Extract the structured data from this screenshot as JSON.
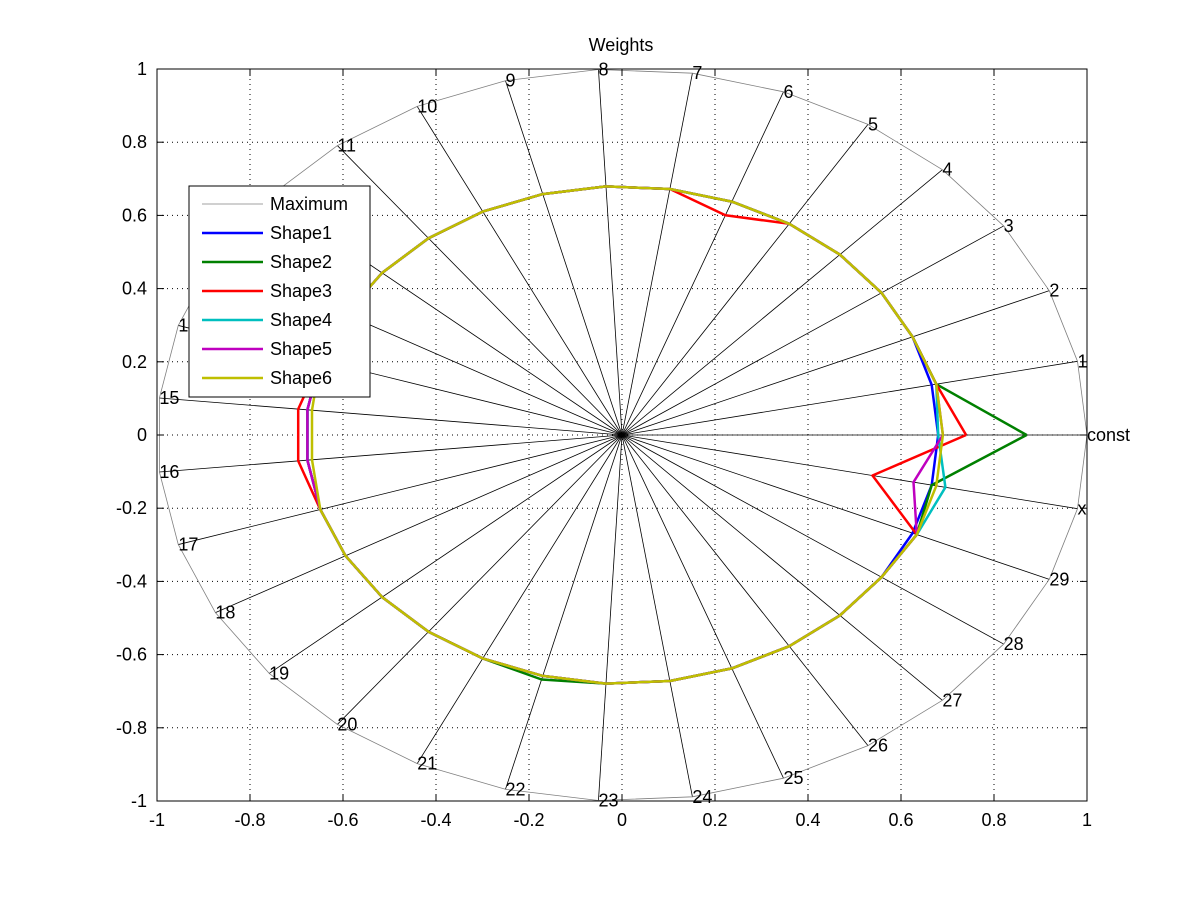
{
  "chart_data": {
    "type": "line",
    "subtype": "radar",
    "title": "Weights",
    "xlim": [
      -1,
      1
    ],
    "ylim": [
      -1,
      1
    ],
    "xticks": [
      "-1",
      "-0.8",
      "-0.6",
      "-0.4",
      "-0.2",
      "0",
      "0.2",
      "0.4",
      "0.6",
      "0.8",
      "1"
    ],
    "yticks": [
      "-1",
      "-0.8",
      "-0.6",
      "-0.4",
      "-0.2",
      "0",
      "0.2",
      "0.4",
      "0.6",
      "0.8",
      "1"
    ],
    "grid": true,
    "legend_position": "upper-left",
    "spoke_labels": [
      "const",
      "1",
      "2",
      "3",
      "4",
      "5",
      "6",
      "7",
      "8",
      "9",
      "10",
      "11",
      "12",
      "13",
      "14",
      "15",
      "16",
      "17",
      "18",
      "19",
      "20",
      "21",
      "22",
      "23",
      "24",
      "25",
      "26",
      "27",
      "28",
      "29",
      "x"
    ],
    "spoke_angle_step_deg": 11.6129,
    "series": [
      {
        "name": "Maximum",
        "color": "#808080",
        "values": [
          1,
          1,
          1,
          1,
          1,
          1,
          1,
          1,
          1,
          1,
          1,
          1,
          1,
          1,
          1,
          1,
          1,
          1,
          1,
          1,
          1,
          1,
          1,
          1,
          1,
          1,
          1,
          1,
          1,
          1,
          1
        ]
      },
      {
        "name": "Shape1",
        "color": "#0000ff",
        "values": [
          0.68,
          0.68,
          0.68,
          0.68,
          0.68,
          0.68,
          0.68,
          0.68,
          0.68,
          0.68,
          0.68,
          0.68,
          0.68,
          0.68,
          0.68,
          0.68,
          0.68,
          0.68,
          0.68,
          0.68,
          0.68,
          0.68,
          0.68,
          0.68,
          0.68,
          0.68,
          0.68,
          0.68,
          0.68,
          0.68,
          0.68
        ]
      },
      {
        "name": "Shape2",
        "color": "#008000",
        "values": [
          0.87,
          0.69,
          0.68,
          0.68,
          0.68,
          0.68,
          0.68,
          0.68,
          0.68,
          0.68,
          0.68,
          0.68,
          0.68,
          0.68,
          0.68,
          0.68,
          0.68,
          0.68,
          0.68,
          0.68,
          0.68,
          0.68,
          0.69,
          0.68,
          0.68,
          0.68,
          0.68,
          0.68,
          0.68,
          0.69,
          0.68
        ]
      },
      {
        "name": "Shape3",
        "color": "#ff0000",
        "values": [
          0.74,
          0.69,
          0.68,
          0.68,
          0.68,
          0.68,
          0.64,
          0.68,
          0.68,
          0.68,
          0.68,
          0.68,
          0.68,
          0.68,
          0.68,
          0.7,
          0.7,
          0.68,
          0.68,
          0.68,
          0.68,
          0.68,
          0.68,
          0.68,
          0.68,
          0.68,
          0.68,
          0.68,
          0.68,
          0.69,
          0.55
        ]
      },
      {
        "name": "Shape4",
        "color": "#00bfbf",
        "values": [
          0.68,
          0.69,
          0.68,
          0.68,
          0.68,
          0.68,
          0.68,
          0.68,
          0.68,
          0.68,
          0.68,
          0.68,
          0.68,
          0.68,
          0.68,
          0.68,
          0.68,
          0.68,
          0.68,
          0.68,
          0.68,
          0.68,
          0.68,
          0.68,
          0.68,
          0.68,
          0.68,
          0.68,
          0.68,
          0.69,
          0.71
        ]
      },
      {
        "name": "Shape5",
        "color": "#bf00bf",
        "values": [
          0.69,
          0.69,
          0.68,
          0.68,
          0.68,
          0.68,
          0.68,
          0.68,
          0.68,
          0.68,
          0.68,
          0.68,
          0.68,
          0.68,
          0.68,
          0.68,
          0.68,
          0.68,
          0.68,
          0.68,
          0.68,
          0.68,
          0.68,
          0.68,
          0.68,
          0.68,
          0.68,
          0.68,
          0.68,
          0.69,
          0.64
        ]
      },
      {
        "name": "Shape6",
        "color": "#bfbf00",
        "values": [
          0.69,
          0.69,
          0.68,
          0.68,
          0.68,
          0.68,
          0.68,
          0.68,
          0.68,
          0.68,
          0.68,
          0.68,
          0.68,
          0.68,
          0.68,
          0.67,
          0.67,
          0.68,
          0.68,
          0.68,
          0.68,
          0.68,
          0.68,
          0.68,
          0.68,
          0.68,
          0.68,
          0.68,
          0.68,
          0.69,
          0.69
        ]
      }
    ]
  }
}
